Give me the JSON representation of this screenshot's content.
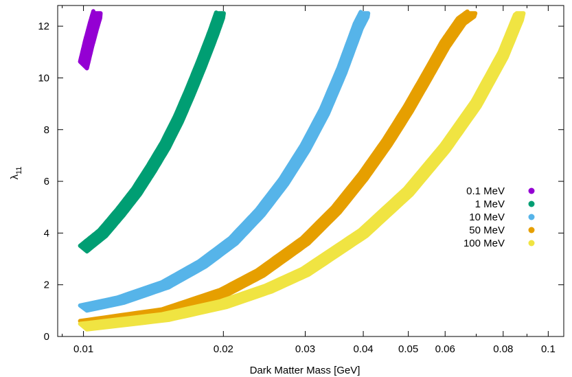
{
  "chart_data": {
    "type": "scatter",
    "title": "",
    "xlabel": "Dark Matter Mass [GeV]",
    "ylabel_main": "λ",
    "ylabel_sub": "11",
    "xscale": "log",
    "xlim": [
      0.0088,
      0.108
    ],
    "ylim": [
      0,
      12.8
    ],
    "x_ticks": [
      {
        "value": 0.01,
        "label": "0.01"
      },
      {
        "value": 0.02,
        "label": "0.02"
      },
      {
        "value": 0.03,
        "label": "0.03"
      },
      {
        "value": 0.04,
        "label": "0.04"
      },
      {
        "value": 0.05,
        "label": "0.05"
      },
      {
        "value": 0.06,
        "label": "0.06"
      },
      {
        "value": 0.08,
        "label": "0.08"
      },
      {
        "value": 0.1,
        "label": "0.1"
      }
    ],
    "y_ticks": [
      {
        "value": 0,
        "label": "0"
      },
      {
        "value": 2,
        "label": "2"
      },
      {
        "value": 4,
        "label": "4"
      },
      {
        "value": 6,
        "label": "6"
      },
      {
        "value": 8,
        "label": "8"
      },
      {
        "value": 10,
        "label": "10"
      },
      {
        "value": 12,
        "label": "12"
      }
    ],
    "grid": false,
    "legend_position": "right",
    "series": [
      {
        "name": "0.1 MeV",
        "color": "#9400d3",
        "thickness": 0.26,
        "points": [
          [
            0.01,
            10.5
          ],
          [
            0.01025,
            11.3
          ],
          [
            0.0105,
            12.0
          ],
          [
            0.0107,
            12.5
          ]
        ]
      },
      {
        "name": "1 MeV",
        "color": "#009e73",
        "thickness": 0.22,
        "points": [
          [
            0.01,
            3.4
          ],
          [
            0.011,
            4.0
          ],
          [
            0.012,
            4.8
          ],
          [
            0.013,
            5.6
          ],
          [
            0.014,
            6.5
          ],
          [
            0.015,
            7.4
          ],
          [
            0.016,
            8.4
          ],
          [
            0.017,
            9.5
          ],
          [
            0.018,
            10.6
          ],
          [
            0.019,
            11.7
          ],
          [
            0.0197,
            12.5
          ]
        ]
      },
      {
        "name": "10 MeV",
        "color": "#56b4e9",
        "thickness": 0.2,
        "points": [
          [
            0.01,
            1.1
          ],
          [
            0.012,
            1.4
          ],
          [
            0.015,
            2.0
          ],
          [
            0.018,
            2.8
          ],
          [
            0.021,
            3.7
          ],
          [
            0.024,
            4.8
          ],
          [
            0.027,
            6.0
          ],
          [
            0.03,
            7.3
          ],
          [
            0.033,
            8.7
          ],
          [
            0.036,
            10.3
          ],
          [
            0.039,
            12.0
          ],
          [
            0.0403,
            12.5
          ]
        ]
      },
      {
        "name": "50 MeV",
        "color": "#e69f00",
        "thickness": 0.2,
        "points": [
          [
            0.01,
            0.5
          ],
          [
            0.015,
            0.95
          ],
          [
            0.02,
            1.7
          ],
          [
            0.024,
            2.45
          ],
          [
            0.03,
            3.7
          ],
          [
            0.035,
            4.9
          ],
          [
            0.04,
            6.2
          ],
          [
            0.045,
            7.5
          ],
          [
            0.05,
            8.8
          ],
          [
            0.055,
            10.1
          ],
          [
            0.06,
            11.3
          ],
          [
            0.065,
            12.2
          ],
          [
            0.0685,
            12.5
          ]
        ]
      },
      {
        "name": "100 MeV",
        "color": "#f0e442",
        "thickness": 0.22,
        "points": [
          [
            0.01,
            0.38
          ],
          [
            0.015,
            0.75
          ],
          [
            0.02,
            1.25
          ],
          [
            0.025,
            1.85
          ],
          [
            0.03,
            2.5
          ],
          [
            0.04,
            4.0
          ],
          [
            0.05,
            5.6
          ],
          [
            0.06,
            7.3
          ],
          [
            0.07,
            9.0
          ],
          [
            0.08,
            10.9
          ],
          [
            0.087,
            12.5
          ]
        ]
      }
    ]
  }
}
